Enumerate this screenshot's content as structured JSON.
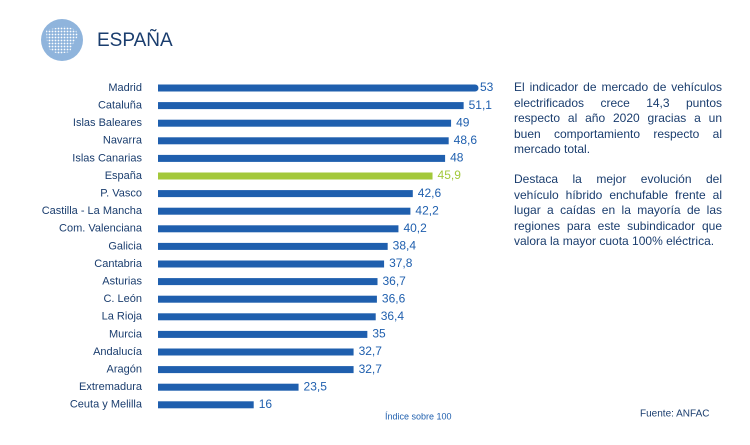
{
  "header": {
    "title": "ESPAÑA"
  },
  "chart_data": {
    "type": "bar",
    "orientation": "horizontal",
    "categories": [
      "Madrid",
      "Cataluña",
      "Islas Baleares",
      "Navarra",
      "Islas Canarias",
      "España",
      "P. Vasco",
      "Castilla - La Mancha",
      "Com. Valenciana",
      "Galicia",
      "Cantabria",
      "Asturias",
      "C. León",
      "La Rioja",
      "Murcia",
      "Andalucía",
      "Aragón",
      "Extremadura",
      "Ceuta y Melilla"
    ],
    "values": [
      53,
      51.1,
      49,
      48.6,
      48,
      45.9,
      42.6,
      42.2,
      40.2,
      38.4,
      37.8,
      36.7,
      36.6,
      36.4,
      35,
      32.7,
      32.7,
      23.5,
      16
    ],
    "value_labels": [
      "53",
      "51,1",
      "49",
      "48,6",
      "48",
      "45,9",
      "42,6",
      "42,2",
      "40,2",
      "38,4",
      "37,8",
      "36,7",
      "36,6",
      "36,4",
      "35",
      "32,7",
      "32,7",
      "23,5",
      "16"
    ],
    "colors": [
      "#1f5fae",
      "#1f5fae",
      "#1f5fae",
      "#1f5fae",
      "#1f5fae",
      "#a3c83a",
      "#1f5fae",
      "#1f5fae",
      "#1f5fae",
      "#1f5fae",
      "#1f5fae",
      "#1f5fae",
      "#1f5fae",
      "#1f5fae",
      "#1f5fae",
      "#1f5fae",
      "#1f5fae",
      "#1f5fae",
      "#1f5fae"
    ],
    "xlim": [
      0,
      53
    ],
    "note": "Índice sobre 100",
    "source": "Fuente: ANFAC"
  },
  "text": {
    "paragraphs": [
      "El indicador de mercado de vehículos electrificados crece 14,3 puntos respecto al año 2020 gracias a un buen comportamiento respecto al mercado total.",
      "Destaca la mejor evolución del vehículo híbrido enchufable frente al lugar a caídas en la mayoría de las regiones para este subindicador que valora la mayor cuota 100% eléctrica."
    ]
  }
}
